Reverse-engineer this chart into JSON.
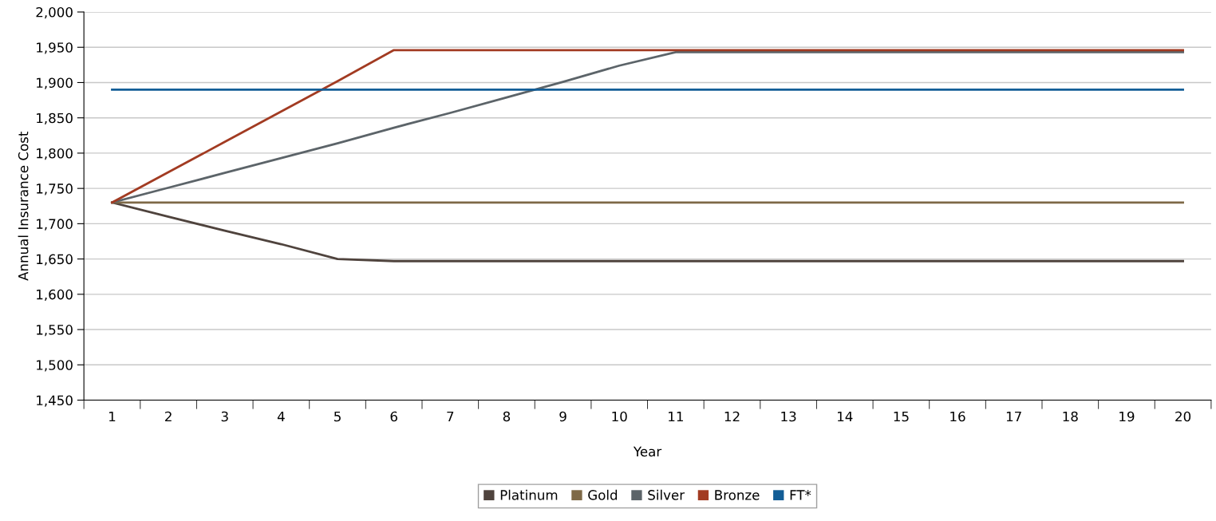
{
  "chart_data": {
    "type": "line",
    "xlabel": "Year",
    "ylabel": "Annual Insurance Cost",
    "categories": [
      "1",
      "2",
      "3",
      "4",
      "5",
      "6",
      "7",
      "8",
      "9",
      "10",
      "11",
      "12",
      "13",
      "14",
      "15",
      "16",
      "17",
      "18",
      "19",
      "20"
    ],
    "ylim": [
      1450,
      2000
    ],
    "yticks": [
      {
        "value": 1450,
        "label": "1,450"
      },
      {
        "value": 1500,
        "label": "1,500"
      },
      {
        "value": 1550,
        "label": "1,550"
      },
      {
        "value": 1600,
        "label": "1,600"
      },
      {
        "value": 1650,
        "label": "1,650"
      },
      {
        "value": 1700,
        "label": "1,700"
      },
      {
        "value": 1750,
        "label": "1,750"
      },
      {
        "value": 1800,
        "label": "1,800"
      },
      {
        "value": 1850,
        "label": "1,850"
      },
      {
        "value": 1900,
        "label": "1,900"
      },
      {
        "value": 1950,
        "label": "1,950"
      },
      {
        "value": 2000,
        "label": "2,000"
      }
    ],
    "grid": "y",
    "legend": "bottom",
    "marker": "none",
    "line_style": "solid",
    "series": [
      {
        "name": "Platinum",
        "color": "#4f433d",
        "values": [
          1730,
          1710,
          1690,
          1671,
          1650,
          1647,
          1647,
          1647,
          1647,
          1647,
          1647,
          1647,
          1647,
          1647,
          1647,
          1647,
          1647,
          1647,
          1647,
          1647
        ]
      },
      {
        "name": "Gold",
        "color": "#7e6947",
        "values": [
          1730,
          1730,
          1730,
          1730,
          1730,
          1730,
          1730,
          1730,
          1730,
          1730,
          1730,
          1730,
          1730,
          1730,
          1730,
          1730,
          1730,
          1730,
          1730,
          1730
        ]
      },
      {
        "name": "Silver",
        "color": "#5c6469",
        "values": [
          1730,
          1751,
          1772,
          1793,
          1814,
          1836,
          1857,
          1879,
          1901,
          1924,
          1943,
          1943,
          1943,
          1943,
          1943,
          1943,
          1943,
          1943,
          1943,
          1943
        ]
      },
      {
        "name": "Bronze",
        "color": "#a23b22",
        "values": [
          1730,
          1773,
          1816,
          1859,
          1902,
          1946,
          1946,
          1946,
          1946,
          1946,
          1946,
          1946,
          1946,
          1946,
          1946,
          1946,
          1946,
          1946,
          1946,
          1946
        ]
      },
      {
        "name": "FT*",
        "color": "#125d96",
        "values": [
          1890,
          1890,
          1890,
          1890,
          1890,
          1890,
          1890,
          1890,
          1890,
          1890,
          1890,
          1890,
          1890,
          1890,
          1890,
          1890,
          1890,
          1890,
          1890,
          1890
        ]
      }
    ]
  }
}
